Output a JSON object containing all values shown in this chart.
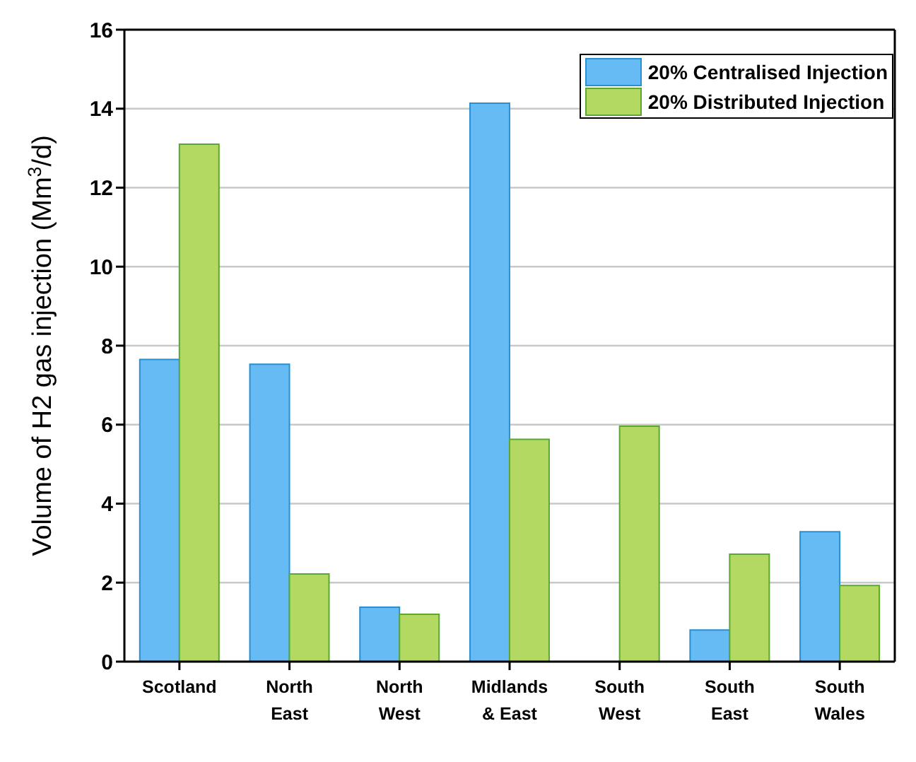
{
  "chart_data": {
    "type": "bar",
    "ylabel": "Volume of H2 gas injection (Mm$^{3}$/d)",
    "categories": [
      "Scotland",
      "North\nEast",
      "North\nWest",
      "Midlands\n& East",
      "South\nWest",
      "South\nEast",
      "South\nWales"
    ],
    "series": [
      {
        "name": "20% Centralised Injection",
        "color": "#66bbf5",
        "values": [
          7.65,
          7.53,
          1.38,
          14.14,
          0,
          0.8,
          3.29
        ]
      },
      {
        "name": "20% Distributed Injection",
        "color": "#b3d962",
        "values": [
          13.1,
          2.22,
          1.2,
          5.63,
          5.96,
          2.72,
          1.93
        ]
      }
    ],
    "ylim": [
      0,
      16
    ],
    "yticks": [
      0,
      2,
      4,
      6,
      8,
      10,
      12,
      14,
      16
    ],
    "grid": "y",
    "legend": "top right"
  }
}
